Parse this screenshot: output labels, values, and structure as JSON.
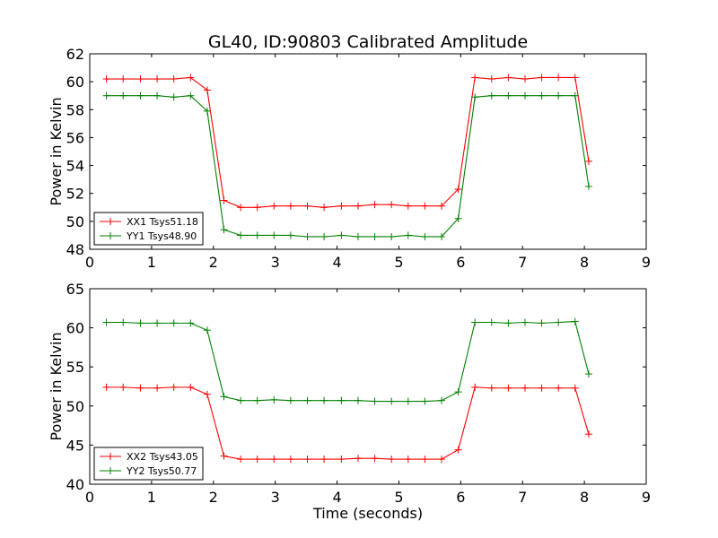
{
  "figure": {
    "title": "GL40, ID:90803 Calibrated Amplitude"
  },
  "chart_data": [
    {
      "type": "line",
      "title": "GL40, ID:90803 Calibrated Amplitude",
      "xlabel": "",
      "ylabel": "Power in Kelvin",
      "xlim": [
        0,
        9
      ],
      "ylim": [
        48,
        62
      ],
      "xticks": [
        0,
        1,
        2,
        3,
        4,
        5,
        6,
        7,
        8,
        9
      ],
      "yticks": [
        48,
        50,
        52,
        54,
        56,
        58,
        60,
        62
      ],
      "legend_position": "lower-left",
      "x": [
        0.27,
        0.54,
        0.82,
        1.09,
        1.36,
        1.63,
        1.9,
        2.17,
        2.44,
        2.71,
        2.98,
        3.25,
        3.52,
        3.79,
        4.07,
        4.34,
        4.61,
        4.88,
        5.15,
        5.42,
        5.69,
        5.96,
        6.23,
        6.5,
        6.77,
        7.04,
        7.31,
        7.58,
        7.85,
        8.07
      ],
      "series": [
        {
          "name": "XX1 Tsys51.18",
          "color": "#ff0000",
          "values": [
            60.2,
            60.2,
            60.2,
            60.2,
            60.2,
            60.3,
            59.4,
            51.5,
            51.0,
            51.0,
            51.1,
            51.1,
            51.1,
            51.0,
            51.1,
            51.1,
            51.2,
            51.2,
            51.1,
            51.1,
            51.1,
            52.3,
            60.3,
            60.2,
            60.3,
            60.2,
            60.3,
            60.3,
            60.3,
            54.3
          ]
        },
        {
          "name": "YY1 Tsys48.90",
          "color": "#008000",
          "values": [
            59.0,
            59.0,
            59.0,
            59.0,
            58.9,
            59.0,
            57.9,
            49.4,
            49.0,
            49.0,
            49.0,
            49.0,
            48.9,
            48.9,
            49.0,
            48.9,
            48.9,
            48.9,
            49.0,
            48.9,
            48.9,
            50.2,
            58.9,
            59.0,
            59.0,
            59.0,
            59.0,
            59.0,
            59.0,
            52.5
          ]
        }
      ]
    },
    {
      "type": "line",
      "title": "",
      "xlabel": "Time (seconds)",
      "ylabel": "Power in Kelvin",
      "xlim": [
        0,
        9
      ],
      "ylim": [
        40,
        65
      ],
      "xticks": [
        0,
        1,
        2,
        3,
        4,
        5,
        6,
        7,
        8,
        9
      ],
      "yticks": [
        40,
        45,
        50,
        55,
        60,
        65
      ],
      "legend_position": "lower-left",
      "x": [
        0.27,
        0.54,
        0.82,
        1.09,
        1.36,
        1.63,
        1.9,
        2.17,
        2.44,
        2.71,
        2.98,
        3.25,
        3.52,
        3.79,
        4.07,
        4.34,
        4.61,
        4.88,
        5.15,
        5.42,
        5.69,
        5.96,
        6.23,
        6.5,
        6.77,
        7.04,
        7.31,
        7.58,
        7.85,
        8.07
      ],
      "series": [
        {
          "name": "XX2 Tsys43.05",
          "color": "#ff0000",
          "values": [
            52.4,
            52.4,
            52.3,
            52.3,
            52.4,
            52.4,
            51.5,
            43.6,
            43.2,
            43.2,
            43.2,
            43.2,
            43.2,
            43.2,
            43.2,
            43.3,
            43.3,
            43.2,
            43.2,
            43.2,
            43.2,
            44.4,
            52.4,
            52.3,
            52.3,
            52.3,
            52.3,
            52.3,
            52.3,
            46.4
          ]
        },
        {
          "name": "YY2 Tsys50.77",
          "color": "#008000",
          "values": [
            60.7,
            60.7,
            60.6,
            60.6,
            60.6,
            60.6,
            59.7,
            51.2,
            50.7,
            50.7,
            50.8,
            50.7,
            50.7,
            50.7,
            50.7,
            50.7,
            50.6,
            50.6,
            50.6,
            50.6,
            50.7,
            51.8,
            60.7,
            60.7,
            60.6,
            60.7,
            60.6,
            60.7,
            60.8,
            54.1
          ]
        }
      ]
    }
  ]
}
